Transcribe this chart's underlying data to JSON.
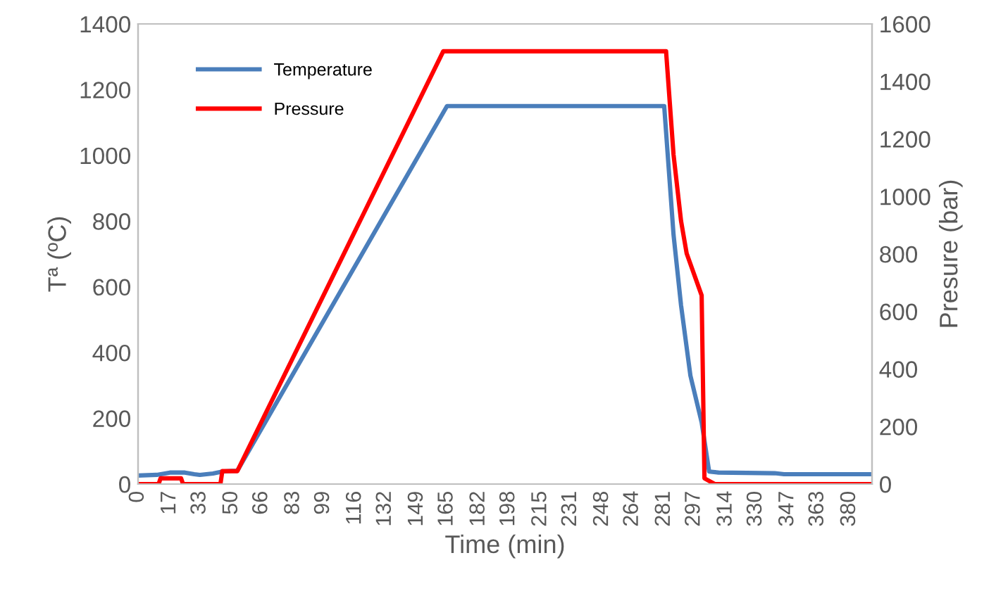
{
  "chart_data": {
    "type": "line",
    "xlabel": "Time (min)",
    "ylabel": "Tª (ºC)",
    "y2label": "Presure (bar)",
    "xlim": [
      0,
      392
    ],
    "xticks": [
      0,
      17,
      33,
      50,
      66,
      83,
      99,
      116,
      132,
      149,
      165,
      182,
      198,
      215,
      231,
      248,
      264,
      281,
      297,
      314,
      330,
      347,
      363,
      380
    ],
    "ylim": [
      0,
      1400
    ],
    "yticks": [
      0,
      200,
      400,
      600,
      800,
      1000,
      1200,
      1400
    ],
    "y2lim": [
      0,
      1600
    ],
    "y2ticks": [
      0,
      200,
      400,
      600,
      800,
      1000,
      1200,
      1400,
      1600
    ],
    "grid": false,
    "legend": "top left",
    "marker": "none",
    "line_style": "solid",
    "series": [
      {
        "name": "Temperature",
        "color": "#4a7ebb",
        "x": [
          0,
          10,
          17,
          25,
          30,
          33,
          40,
          45,
          50,
          53,
          165,
          281,
          286,
          290,
          295,
          301,
          305,
          310,
          340,
          345,
          392
        ],
        "values": [
          26,
          28,
          35,
          35,
          30,
          28,
          32,
          38,
          40,
          40,
          1150,
          1150,
          758,
          544,
          330,
          188,
          38,
          35,
          33,
          30,
          30
        ]
      },
      {
        "name": "Pressure",
        "color": "#ff0000",
        "axis": "y2",
        "x": [
          0,
          11,
          12,
          23,
          24,
          44,
          45,
          53,
          163,
          282,
          286,
          290,
          293,
          301,
          302.5,
          308,
          392
        ],
        "values": [
          0,
          0,
          20,
          20,
          0,
          0,
          45,
          45,
          1505,
          1505,
          1145,
          915,
          802,
          656,
          20,
          0,
          0
        ]
      }
    ]
  }
}
